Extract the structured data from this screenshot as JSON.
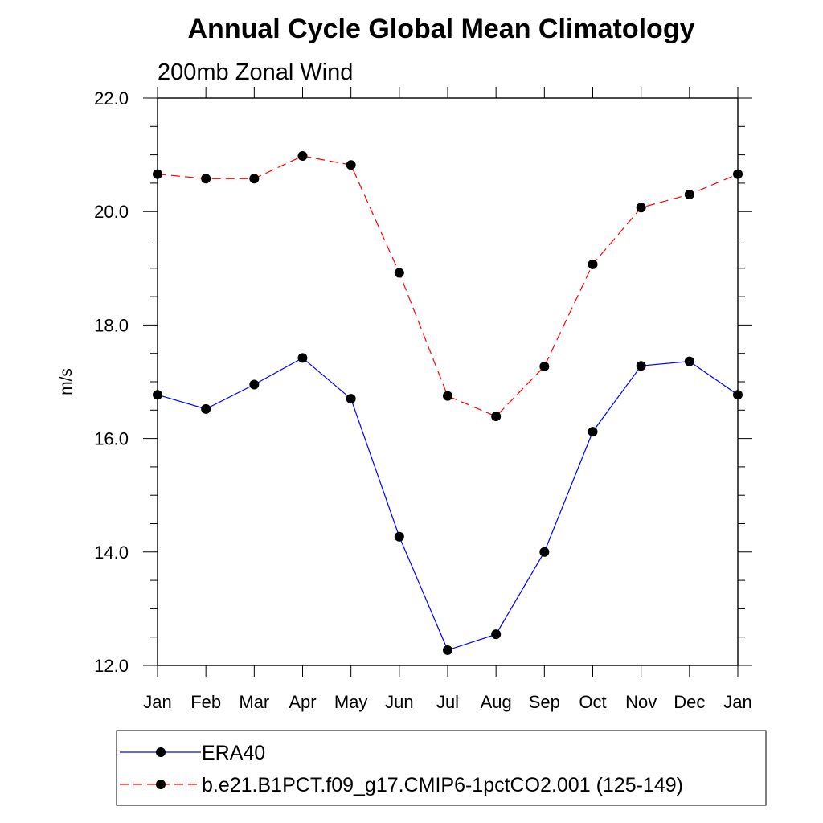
{
  "chart_data": {
    "type": "line",
    "title": "Annual Cycle Global Mean Climatology",
    "subtitle": "200mb Zonal Wind",
    "xlabel": "",
    "ylabel": "m/s",
    "categories": [
      "Jan",
      "Feb",
      "Mar",
      "Apr",
      "May",
      "Jun",
      "Jul",
      "Aug",
      "Sep",
      "Oct",
      "Nov",
      "Dec",
      "Jan"
    ],
    "ylim": [
      12.0,
      22.0
    ],
    "y_ticks": [
      "12.0",
      "14.0",
      "16.0",
      "18.0",
      "20.0",
      "22.0"
    ],
    "y_minor_step": 0.5,
    "grid": false,
    "legend_position": "bottom",
    "series": [
      {
        "name": "ERA40",
        "color": "#0000ff",
        "line_style": "solid",
        "marker": "filled-circle",
        "values": [
          16.77,
          16.52,
          16.95,
          17.42,
          16.7,
          14.27,
          12.27,
          12.55,
          14.0,
          16.12,
          17.28,
          17.36,
          16.77
        ]
      },
      {
        "name": "b.e21.B1PCT.f09_g17.CMIP6-1pctCO2.001 (125-149)",
        "color": "#ff0000",
        "line_style": "dashed",
        "marker": "filled-circle",
        "values": [
          20.66,
          20.58,
          20.58,
          20.98,
          20.82,
          18.92,
          16.75,
          16.39,
          17.27,
          19.07,
          20.07,
          20.3,
          20.66
        ]
      }
    ]
  }
}
